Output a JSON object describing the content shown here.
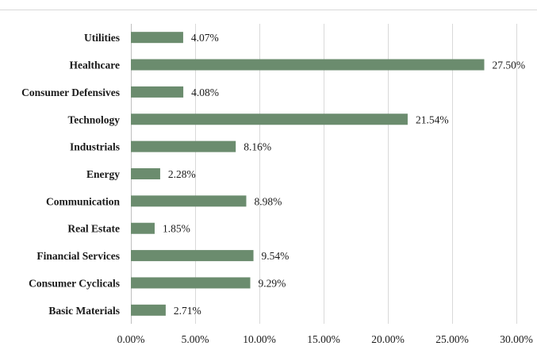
{
  "chart_data": {
    "type": "bar",
    "orientation": "horizontal",
    "categories": [
      "Utilities",
      "Healthcare",
      "Consumer Defensives",
      "Technology",
      "Industrials",
      "Energy",
      "Communication",
      "Real Estate",
      "Financial Services",
      "Consumer Cyclicals",
      "Basic Materials"
    ],
    "values": [
      4.07,
      27.5,
      4.08,
      21.54,
      8.16,
      2.28,
      8.98,
      1.85,
      9.54,
      9.29,
      2.71
    ],
    "value_labels": [
      "4.07%",
      "27.50%",
      "4.08%",
      "21.54%",
      "8.16%",
      "2.28%",
      "8.98%",
      "1.85%",
      "9.54%",
      "9.29%",
      "2.71%"
    ],
    "x_ticks": [
      0,
      5,
      10,
      15,
      20,
      25,
      30
    ],
    "x_tick_labels": [
      "0.00%",
      "5.00%",
      "10.00%",
      "15.00%",
      "20.00%",
      "25.00%",
      "30.00%"
    ],
    "xlim": [
      0,
      30
    ],
    "grid": true,
    "bar_color": "#6b8c6e",
    "title": "",
    "xlabel": "",
    "ylabel": ""
  }
}
